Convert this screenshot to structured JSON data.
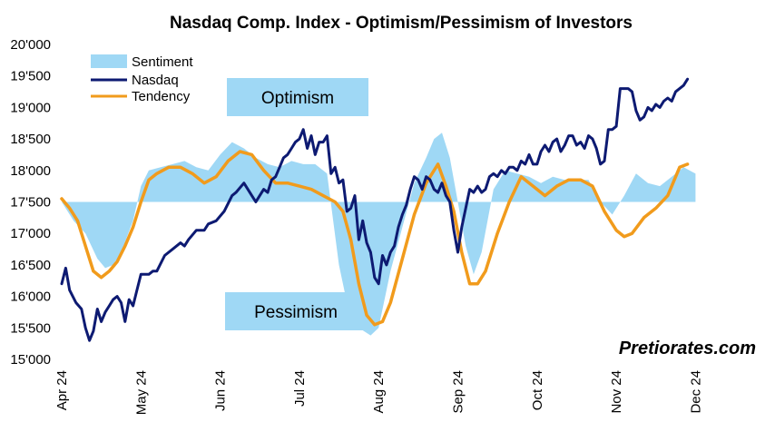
{
  "chart_data": {
    "type": "line",
    "title": "Nasdaq Comp. Index - Optimism/Pessimism of Investors",
    "ylim": [
      15000,
      20000
    ],
    "yticks": [
      "15'000",
      "15'500",
      "16'000",
      "16'500",
      "17'000",
      "17'500",
      "18'000",
      "18'500",
      "19'000",
      "19'500",
      "20'000"
    ],
    "ytick_values": [
      15000,
      15500,
      16000,
      16500,
      17000,
      17500,
      18000,
      18500,
      19000,
      19500,
      20000
    ],
    "xlim": [
      0,
      8.5
    ],
    "xticks": [
      "Apr 24",
      "May 24",
      "Jun 24",
      "Jul 24",
      "Aug 24",
      "Sep 24",
      "Oct 24",
      "Nov 24",
      "Dec 24"
    ],
    "xtick_values": [
      0,
      1,
      2,
      3,
      4,
      5,
      6,
      7,
      8
    ],
    "baseline": 17500,
    "legend": {
      "position": "top-left",
      "entries": [
        "Sentiment",
        "Nasdaq",
        "Tendency"
      ]
    },
    "annotations": {
      "optimism": "Optimism",
      "pessimism": "Pessimism"
    },
    "source": "Pretiorates.com",
    "colors": {
      "sentiment": "#9fd8f5",
      "nasdaq": "#0d1a72",
      "tendency": "#f19b1c"
    },
    "series": [
      {
        "name": "Sentiment",
        "kind": "area",
        "x": [
          0.0,
          0.15,
          0.3,
          0.45,
          0.55,
          0.65,
          0.75,
          0.9,
          1.0,
          1.1,
          1.25,
          1.4,
          1.55,
          1.7,
          1.85,
          2.0,
          2.15,
          2.3,
          2.45,
          2.6,
          2.75,
          2.9,
          3.05,
          3.2,
          3.35,
          3.5,
          3.6,
          3.75,
          3.9,
          4.0,
          4.15,
          4.3,
          4.45,
          4.6,
          4.7,
          4.8,
          4.9,
          5.0,
          5.1,
          5.2,
          5.3,
          5.45,
          5.6,
          5.75,
          5.9,
          6.05,
          6.2,
          6.35,
          6.5,
          6.65,
          6.8,
          6.95,
          7.1,
          7.25,
          7.4,
          7.55,
          7.7,
          7.85,
          8.0
        ],
        "values": [
          17500,
          17200,
          17000,
          16600,
          16450,
          16500,
          16700,
          17200,
          17750,
          18000,
          18050,
          18100,
          18150,
          18050,
          18000,
          18250,
          18450,
          18350,
          18200,
          18100,
          18050,
          18150,
          18100,
          18100,
          17950,
          16500,
          15900,
          15500,
          15380,
          15500,
          16400,
          17100,
          17800,
          18200,
          18500,
          18600,
          18200,
          17500,
          16800,
          16350,
          16700,
          17700,
          18000,
          17950,
          17900,
          17800,
          17900,
          17850,
          17850,
          17850,
          17500,
          17300,
          17600,
          17950,
          17800,
          17750,
          17900,
          18050,
          17950
        ]
      },
      {
        "name": "Nasdaq",
        "kind": "line",
        "x": [
          0.0,
          0.05,
          0.1,
          0.18,
          0.25,
          0.3,
          0.35,
          0.4,
          0.45,
          0.5,
          0.55,
          0.6,
          0.65,
          0.7,
          0.75,
          0.8,
          0.85,
          0.9,
          0.95,
          1.0,
          1.05,
          1.1,
          1.15,
          1.2,
          1.3,
          1.4,
          1.5,
          1.55,
          1.6,
          1.7,
          1.8,
          1.85,
          1.95,
          2.05,
          2.15,
          2.2,
          2.3,
          2.4,
          2.45,
          2.5,
          2.55,
          2.6,
          2.65,
          2.7,
          2.75,
          2.8,
          2.85,
          2.9,
          2.95,
          3.0,
          3.05,
          3.1,
          3.15,
          3.2,
          3.25,
          3.3,
          3.35,
          3.4,
          3.45,
          3.5,
          3.55,
          3.6,
          3.65,
          3.7,
          3.75,
          3.8,
          3.85,
          3.9,
          3.95,
          4.0,
          4.05,
          4.1,
          4.15,
          4.2,
          4.25,
          4.3,
          4.35,
          4.4,
          4.45,
          4.5,
          4.55,
          4.6,
          4.65,
          4.7,
          4.75,
          4.8,
          4.85,
          4.9,
          4.95,
          5.0,
          5.05,
          5.1,
          5.15,
          5.2,
          5.25,
          5.3,
          5.35,
          5.4,
          5.45,
          5.5,
          5.55,
          5.6,
          5.65,
          5.7,
          5.75,
          5.8,
          5.85,
          5.9,
          5.95,
          6.0,
          6.05,
          6.1,
          6.15,
          6.2,
          6.25,
          6.3,
          6.35,
          6.4,
          6.45,
          6.5,
          6.55,
          6.6,
          6.65,
          6.7,
          6.75,
          6.8,
          6.85,
          6.9,
          6.95,
          7.0,
          7.05,
          7.1,
          7.15,
          7.2,
          7.25,
          7.3,
          7.35,
          7.4,
          7.45,
          7.5,
          7.55,
          7.6,
          7.65,
          7.7,
          7.75,
          7.8,
          7.85,
          7.9
        ],
        "values": [
          16200,
          16450,
          16100,
          15900,
          15800,
          15500,
          15300,
          15450,
          15800,
          15600,
          15750,
          15850,
          15950,
          16000,
          15900,
          15600,
          15950,
          15850,
          16100,
          16350,
          16350,
          16350,
          16400,
          16400,
          16650,
          16750,
          16850,
          16800,
          16900,
          17050,
          17050,
          17150,
          17200,
          17350,
          17600,
          17650,
          17800,
          17600,
          17500,
          17600,
          17700,
          17650,
          17850,
          17900,
          18050,
          18200,
          18250,
          18350,
          18450,
          18500,
          18650,
          18350,
          18550,
          18250,
          18450,
          18450,
          18550,
          17950,
          18050,
          17800,
          17850,
          17350,
          17400,
          17600,
          16900,
          17200,
          16850,
          16700,
          16300,
          16200,
          16650,
          16500,
          16700,
          16800,
          17100,
          17300,
          17450,
          17700,
          17900,
          17850,
          17700,
          17900,
          17850,
          17700,
          17650,
          17800,
          17600,
          17500,
          17050,
          16700,
          17100,
          17400,
          17700,
          17650,
          17750,
          17650,
          17700,
          17900,
          17950,
          17900,
          18000,
          17950,
          18050,
          18050,
          18000,
          18150,
          18100,
          18250,
          18100,
          18100,
          18300,
          18400,
          18300,
          18450,
          18500,
          18300,
          18400,
          18550,
          18550,
          18400,
          18450,
          18350,
          18550,
          18500,
          18350,
          18100,
          18150,
          18650,
          18650,
          18700,
          19300,
          19300,
          19300,
          19250,
          18950,
          18800,
          18850,
          19000,
          18950,
          19050,
          19000,
          19100,
          19150,
          19100,
          19250,
          19300,
          19350,
          19450
        ]
      },
      {
        "name": "Tendency",
        "kind": "line",
        "x": [
          0.0,
          0.1,
          0.2,
          0.3,
          0.4,
          0.5,
          0.6,
          0.7,
          0.8,
          0.9,
          1.0,
          1.1,
          1.2,
          1.35,
          1.5,
          1.65,
          1.8,
          1.95,
          2.1,
          2.25,
          2.4,
          2.55,
          2.7,
          2.85,
          3.0,
          3.15,
          3.3,
          3.45,
          3.55,
          3.65,
          3.75,
          3.85,
          3.95,
          4.05,
          4.15,
          4.3,
          4.45,
          4.6,
          4.75,
          4.85,
          4.95,
          5.05,
          5.15,
          5.25,
          5.35,
          5.5,
          5.65,
          5.8,
          5.95,
          6.1,
          6.25,
          6.4,
          6.55,
          6.7,
          6.85,
          7.0,
          7.1,
          7.2,
          7.35,
          7.5,
          7.65,
          7.8,
          7.9
        ],
        "values": [
          17550,
          17400,
          17200,
          16800,
          16400,
          16300,
          16400,
          16550,
          16800,
          17100,
          17500,
          17850,
          17950,
          18050,
          18050,
          17950,
          17800,
          17900,
          18150,
          18300,
          18250,
          18000,
          17800,
          17800,
          17750,
          17700,
          17600,
          17500,
          17350,
          16900,
          16200,
          15700,
          15550,
          15600,
          15900,
          16600,
          17300,
          17800,
          18100,
          17750,
          17350,
          16700,
          16200,
          16200,
          16400,
          17000,
          17500,
          17900,
          17750,
          17600,
          17750,
          17850,
          17850,
          17750,
          17350,
          17050,
          16950,
          17000,
          17250,
          17400,
          17600,
          18050,
          18100
        ]
      }
    ]
  }
}
